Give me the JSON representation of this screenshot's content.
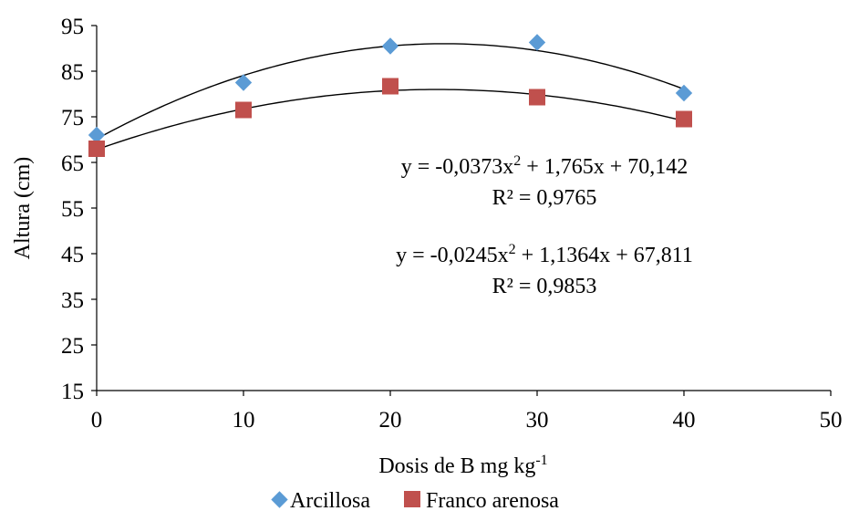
{
  "chart_data": {
    "type": "scatter",
    "title": "",
    "xlabel": "Dosis de B mg kg",
    "xlabel_superscript": "-1",
    "ylabel": "Altura (cm)",
    "xlim": [
      0,
      50
    ],
    "ylim": [
      15,
      95
    ],
    "x_ticks": [
      0,
      10,
      20,
      30,
      40,
      50
    ],
    "y_ticks": [
      15,
      25,
      35,
      45,
      55,
      65,
      75,
      85,
      95
    ],
    "grid": false,
    "legend_position": "bottom",
    "series": [
      {
        "name": "Arcillosa",
        "marker": "diamond",
        "color": "#5B9BD5",
        "x": [
          0,
          10,
          20,
          30,
          40
        ],
        "y": [
          71,
          82.5,
          90.5,
          91.3,
          80.2
        ],
        "trendline": {
          "a": -0.0373,
          "b": 1.765,
          "c": 70.142
        }
      },
      {
        "name": "Franco arenosa",
        "marker": "square",
        "color": "#C0504D",
        "x": [
          0,
          10,
          20,
          30,
          40
        ],
        "y": [
          68,
          76.5,
          81.7,
          79.3,
          74.5
        ],
        "trendline": {
          "a": -0.0245,
          "b": 1.1364,
          "c": 67.811
        }
      }
    ],
    "annotations": [
      {
        "equation": {
          "base": "y = -0,0373x",
          "exp": "2",
          "rest": " + 1,765x + 70,142"
        },
        "r2": "R² = 0,9765"
      },
      {
        "equation": {
          "base": "y = -0,0245x",
          "exp": "2",
          "rest": " + 1,1364x + 67,811"
        },
        "r2": "R² = 0,9853"
      }
    ]
  }
}
